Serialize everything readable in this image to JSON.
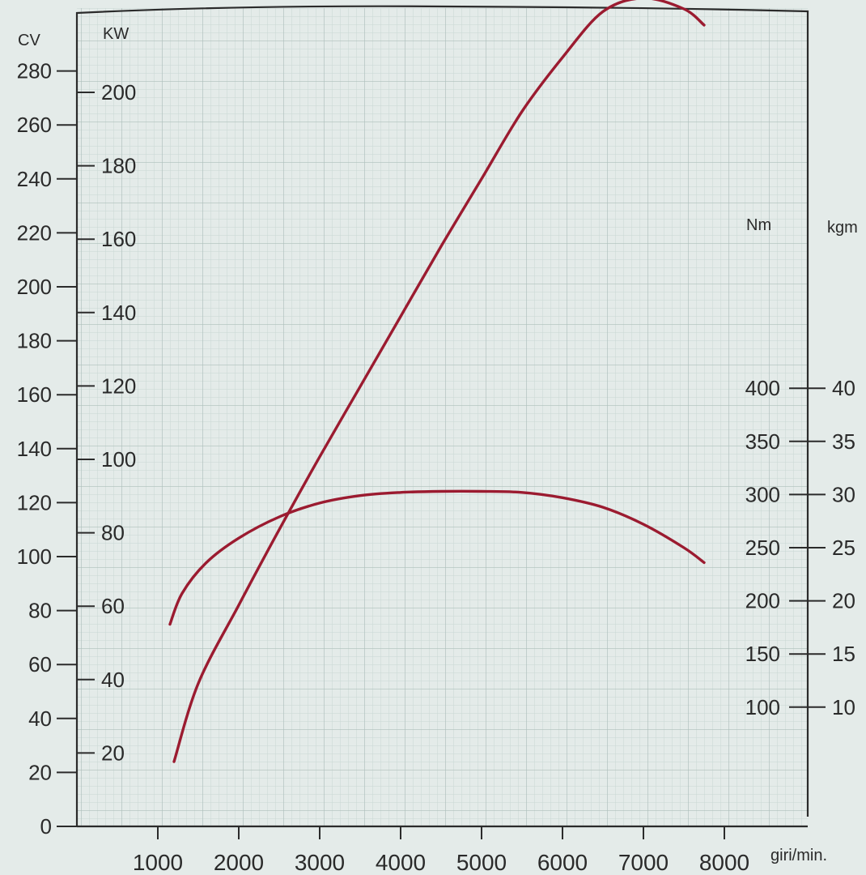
{
  "chart_data": {
    "type": "line",
    "title": "",
    "xlabel": "giri/min.",
    "x_ticks": [
      1000,
      2000,
      3000,
      4000,
      5000,
      6000,
      7000,
      8000
    ],
    "xlim": [
      0,
      9000
    ],
    "axes": {
      "cv": {
        "unit": "CV",
        "ticks": [
          0,
          20,
          40,
          60,
          80,
          100,
          120,
          140,
          160,
          180,
          200,
          220,
          240,
          260,
          280
        ],
        "ylim": [
          0,
          280
        ]
      },
      "kw": {
        "unit": "KW",
        "ticks": [
          20,
          40,
          60,
          80,
          100,
          120,
          140,
          160,
          180,
          200
        ]
      },
      "nm": {
        "unit": "Nm",
        "ticks": [
          100,
          150,
          200,
          250,
          300,
          350,
          400
        ]
      },
      "kgm": {
        "unit": "kgm",
        "ticks": [
          10,
          15,
          20,
          25,
          30,
          35,
          40
        ]
      }
    },
    "grid": true,
    "series": [
      {
        "axis": "cv",
        "color": "#9b1b30",
        "x": [
          1200,
          1500,
          2000,
          2500,
          3000,
          3500,
          4000,
          4500,
          5000,
          5500,
          6000,
          6500,
          7000,
          7500,
          7750
        ],
        "y": [
          24,
          53,
          82,
          110,
          137,
          163,
          189,
          215,
          240,
          265,
          285,
          302,
          307,
          303,
          297
        ]
      },
      {
        "axis": "nm",
        "color": "#9b1b30",
        "x": [
          1150,
          1300,
          1600,
          2000,
          2500,
          3000,
          3500,
          4000,
          4500,
          5000,
          5500,
          6000,
          6500,
          7000,
          7500,
          7750
        ],
        "y": [
          178,
          207,
          236,
          259,
          279,
          292,
          299,
          302,
          303,
          303,
          302,
          297,
          288,
          272,
          250,
          236
        ]
      }
    ]
  }
}
